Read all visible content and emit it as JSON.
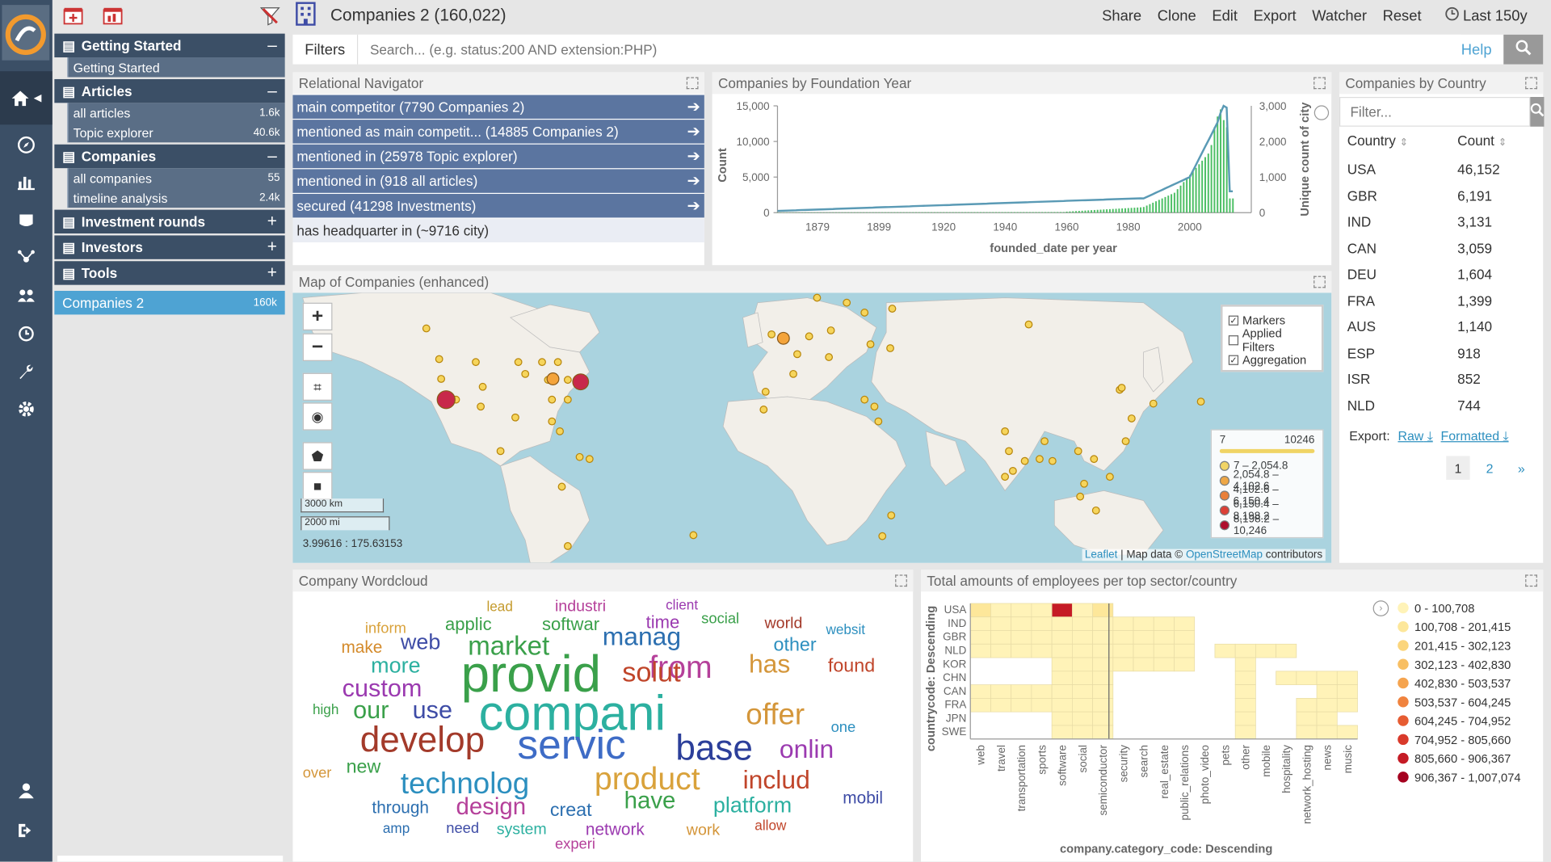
{
  "sidebar": {
    "sections": [
      {
        "label": "Getting Started",
        "toggle": "–",
        "items": [
          {
            "label": "Getting Started",
            "count": ""
          }
        ]
      },
      {
        "label": "Articles",
        "toggle": "–",
        "items": [
          {
            "label": "all articles",
            "count": "1.6k"
          },
          {
            "label": "Topic explorer",
            "count": "40.6k"
          }
        ]
      },
      {
        "label": "Companies",
        "toggle": "–",
        "items": [
          {
            "label": "all companies",
            "count": "55"
          },
          {
            "label": "timeline analysis",
            "count": "2.4k"
          }
        ]
      },
      {
        "label": "Investment rounds",
        "toggle": "+"
      },
      {
        "label": "Investors",
        "toggle": "+"
      },
      {
        "label": "Tools",
        "toggle": "+"
      }
    ],
    "active": {
      "label": "Companies 2",
      "count": "160k"
    }
  },
  "topbar": {
    "title": "Companies 2 (160,022)",
    "actions": [
      "Share",
      "Clone",
      "Edit",
      "Export",
      "Watcher",
      "Reset"
    ],
    "time": "Last 150y"
  },
  "search": {
    "filters_label": "Filters",
    "placeholder": "Search... (e.g. status:200 AND extension:PHP)",
    "help": "Help"
  },
  "relational": {
    "title": "Relational Navigator",
    "rows": [
      "main competitor (7790 Companies 2)",
      "mentioned as main competit... (14885 Companies 2)",
      "mentioned in (25978 Topic explorer)",
      "mentioned in (918 all articles)",
      "secured (41298 Investments)",
      "has headquarter in (~9716 city)"
    ]
  },
  "foundation": {
    "title": "Companies by Foundation Year",
    "ylabel": "Count",
    "y2label": "Unique count of city",
    "xlabel": "founded_date per year",
    "yticks": [
      "15,000",
      "10,000",
      "5,000",
      "0"
    ],
    "y2ticks": [
      "3,000",
      "2,000",
      "1,000",
      "0"
    ],
    "xticks": [
      "1879",
      "1899",
      "1920",
      "1940",
      "1960",
      "1980",
      "2000"
    ]
  },
  "country": {
    "title": "Companies by Country",
    "filter_placeholder": "Filter...",
    "col_country": "Country",
    "col_count": "Count",
    "rows": [
      {
        "country": "USA",
        "count": "46,152"
      },
      {
        "country": "GBR",
        "count": "6,191"
      },
      {
        "country": "IND",
        "count": "3,131"
      },
      {
        "country": "CAN",
        "count": "3,059"
      },
      {
        "country": "DEU",
        "count": "1,604"
      },
      {
        "country": "FRA",
        "count": "1,399"
      },
      {
        "country": "AUS",
        "count": "1,140"
      },
      {
        "country": "ESP",
        "count": "918"
      },
      {
        "country": "ISR",
        "count": "852"
      },
      {
        "country": "NLD",
        "count": "744"
      }
    ],
    "export_label": "Export:",
    "export_raw": "Raw",
    "export_formatted": "Formatted",
    "pages": [
      "1",
      "2",
      "»"
    ]
  },
  "map": {
    "title": "Map of Companies (enhanced)",
    "layers": [
      {
        "label": "Markers",
        "checked": true
      },
      {
        "label": "Applied Filters",
        "checked": false
      },
      {
        "label": "Aggregation",
        "checked": true
      }
    ],
    "range_min": "7",
    "range_max": "10246",
    "legend": [
      {
        "label": "7 – 2,054.8",
        "color": "#f6d55c"
      },
      {
        "label": "2,054.8 – 4,102.6",
        "color": "#f4a43b"
      },
      {
        "label": "4,102.6 – 6,150.4",
        "color": "#ee7a2e"
      },
      {
        "label": "6,150.4 – 8,198.2",
        "color": "#e0352b"
      },
      {
        "label": "8,198.2 – 10,246",
        "color": "#b00020"
      }
    ],
    "scale_km": "3000 km",
    "scale_mi": "2000 mi",
    "coords": "3.99616 : 175.63153",
    "attribution_leaflet": "Leaflet",
    "attribution_mid": " | Map data © ",
    "attribution_osm": "OpenStreetMap",
    "attribution_end": " contributors"
  },
  "wordcloud": {
    "title": "Company Wordcloud",
    "words": [
      {
        "t": "lead",
        "c": "#c49a2c",
        "s": 14
      },
      {
        "t": "industri",
        "c": "#b5409a",
        "s": 16
      },
      {
        "t": "client",
        "c": "#9b3ab0",
        "s": 14
      },
      {
        "t": "inform",
        "c": "#d9a23b",
        "s": 15
      },
      {
        "t": "applic",
        "c": "#3aa04a",
        "s": 18
      },
      {
        "t": "softwar",
        "c": "#3aa04a",
        "s": 18
      },
      {
        "t": "time",
        "c": "#9b3ab0",
        "s": 18
      },
      {
        "t": "social",
        "c": "#3aa04a",
        "s": 15
      },
      {
        "t": "world",
        "c": "#a33a2a",
        "s": 16
      },
      {
        "t": "websit",
        "c": "#2c8fbf",
        "s": 14
      },
      {
        "t": "make",
        "c": "#d48a2a",
        "s": 17
      },
      {
        "t": "web",
        "c": "#3e4ca6",
        "s": 22
      },
      {
        "t": "market",
        "c": "#3aa04a",
        "s": 27
      },
      {
        "t": "manag",
        "c": "#2c6fb0",
        "s": 26
      },
      {
        "t": "other",
        "c": "#2c8fbf",
        "s": 19
      },
      {
        "t": "more",
        "c": "#2cb0a0",
        "s": 22
      },
      {
        "t": "provid",
        "c": "#3aa04a",
        "s": 52
      },
      {
        "t": "from",
        "c": "#b5409a",
        "s": 32
      },
      {
        "t": "has",
        "c": "#d4963a",
        "s": 26
      },
      {
        "t": "found",
        "c": "#c0452a",
        "s": 19
      },
      {
        "t": "custom",
        "c": "#9b3ab0",
        "s": 25
      },
      {
        "t": "solut",
        "c": "#c0452a",
        "s": 28
      },
      {
        "t": "high",
        "c": "#3aa04a",
        "s": 14
      },
      {
        "t": "our",
        "c": "#3aa04a",
        "s": 25
      },
      {
        "t": "use",
        "c": "#3e4ca6",
        "s": 25
      },
      {
        "t": "compani",
        "c": "#2cb0a0",
        "s": 50
      },
      {
        "t": "offer",
        "c": "#d4963a",
        "s": 30
      },
      {
        "t": "one",
        "c": "#2c8fbf",
        "s": 15
      },
      {
        "t": "develop",
        "c": "#a33a2a",
        "s": 36
      },
      {
        "t": "servic",
        "c": "#3e6cc6",
        "s": 42
      },
      {
        "t": "base",
        "c": "#2c3f9a",
        "s": 36
      },
      {
        "t": "onlin",
        "c": "#9b3ab0",
        "s": 26
      },
      {
        "t": "over",
        "c": "#d4963a",
        "s": 15
      },
      {
        "t": "new",
        "c": "#3aa04a",
        "s": 19
      },
      {
        "t": "technolog",
        "c": "#2c8fbf",
        "s": 30
      },
      {
        "t": "product",
        "c": "#d9a23b",
        "s": 32
      },
      {
        "t": "includ",
        "c": "#c0452a",
        "s": 26
      },
      {
        "t": "through",
        "c": "#2c6fb0",
        "s": 17
      },
      {
        "t": "design",
        "c": "#b5409a",
        "s": 24
      },
      {
        "t": "creat",
        "c": "#2c6fb0",
        "s": 19
      },
      {
        "t": "have",
        "c": "#3aa04a",
        "s": 24
      },
      {
        "t": "platform",
        "c": "#2cb0a0",
        "s": 22
      },
      {
        "t": "mobil",
        "c": "#3e4ca6",
        "s": 17
      },
      {
        "t": "amp",
        "c": "#2c6fb0",
        "s": 14
      },
      {
        "t": "need",
        "c": "#3e4ca6",
        "s": 15
      },
      {
        "t": "system",
        "c": "#2cb0a0",
        "s": 16
      },
      {
        "t": "network",
        "c": "#9b3ab0",
        "s": 17
      },
      {
        "t": "work",
        "c": "#d4963a",
        "s": 16
      },
      {
        "t": "allow",
        "c": "#c0452a",
        "s": 14
      },
      {
        "t": "experi",
        "c": "#b5409a",
        "s": 15
      }
    ]
  },
  "heatmap": {
    "title": "Total amounts of employees per top sector/country",
    "ylabel": "countrycode: Descending",
    "xlabel": "company.category_code: Descending",
    "rows": [
      "USA",
      "IND",
      "GBR",
      "NLD",
      "KOR",
      "CHN",
      "CAN",
      "FRA",
      "JPN",
      "SWE"
    ],
    "cols": [
      "web",
      "travel",
      "transportation",
      "sports",
      "software",
      "social",
      "semiconductor",
      "security",
      "search",
      "real_estate",
      "public_relations",
      "photo_video",
      "pets",
      "other",
      "mobile",
      "hospitality",
      "network_hosting",
      "news",
      "music"
    ],
    "legend": [
      {
        "label": "0 - 100,708",
        "color": "#fff3b8"
      },
      {
        "label": "100,708 - 201,415",
        "color": "#fde79a"
      },
      {
        "label": "201,415 - 302,123",
        "color": "#fbd57c"
      },
      {
        "label": "302,123 - 402,830",
        "color": "#f8bf63"
      },
      {
        "label": "402,830 - 503,537",
        "color": "#f5a44f"
      },
      {
        "label": "503,537 - 604,245",
        "color": "#f0833e"
      },
      {
        "label": "604,245 - 704,952",
        "color": "#e65c32"
      },
      {
        "label": "704,952 - 805,660",
        "color": "#d93a2b"
      },
      {
        "label": "805,660 - 906,367",
        "color": "#c51b25"
      },
      {
        "label": "906,367 - 1,007,074",
        "color": "#a5001f"
      }
    ]
  }
}
